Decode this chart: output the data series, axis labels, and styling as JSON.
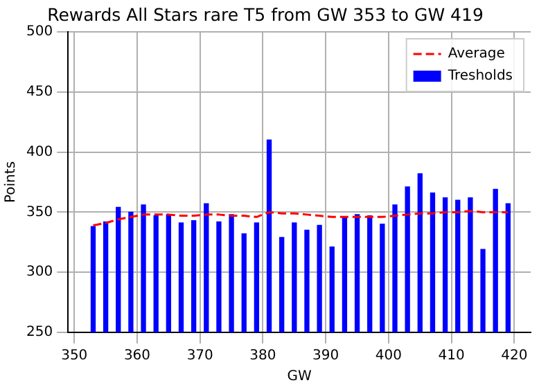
{
  "chart_data": {
    "type": "bar",
    "title": "Rewards All Stars rare T5 from GW 353 to GW 419",
    "xlabel": "GW",
    "ylabel": "Points",
    "x": [
      353,
      355,
      357,
      359,
      361,
      363,
      365,
      367,
      369,
      371,
      373,
      375,
      377,
      379,
      381,
      383,
      385,
      387,
      389,
      391,
      393,
      395,
      397,
      399,
      401,
      403,
      405,
      407,
      409,
      411,
      413,
      415,
      417,
      419
    ],
    "series": [
      {
        "name": "Average",
        "type": "line",
        "color": "#ff0000",
        "line_style": "dashed",
        "values": [
          339,
          341,
          344,
          346,
          348,
          348,
          348,
          347,
          347,
          348,
          348,
          347,
          347,
          346,
          350,
          349,
          349,
          348,
          347,
          346,
          346,
          346,
          346,
          346,
          347,
          348,
          349,
          349,
          350,
          350,
          351,
          350,
          350,
          350
        ]
      },
      {
        "name": "Tresholds",
        "color": "#0000ff",
        "values": [
          338,
          342,
          354,
          350,
          356,
          347,
          348,
          341,
          343,
          357,
          342,
          348,
          332,
          341,
          410,
          329,
          341,
          335,
          339,
          321,
          346,
          348,
          347,
          340,
          356,
          371,
          382,
          366,
          362,
          360,
          362,
          319,
          369,
          357
        ]
      }
    ],
    "xlim": [
      349,
      422.6
    ],
    "xticks": [
      350,
      360,
      370,
      380,
      390,
      400,
      410,
      420
    ],
    "ylim": [
      250,
      500
    ],
    "yticks": [
      250,
      300,
      350,
      400,
      450,
      500
    ],
    "grid": true,
    "legend": "top right"
  }
}
